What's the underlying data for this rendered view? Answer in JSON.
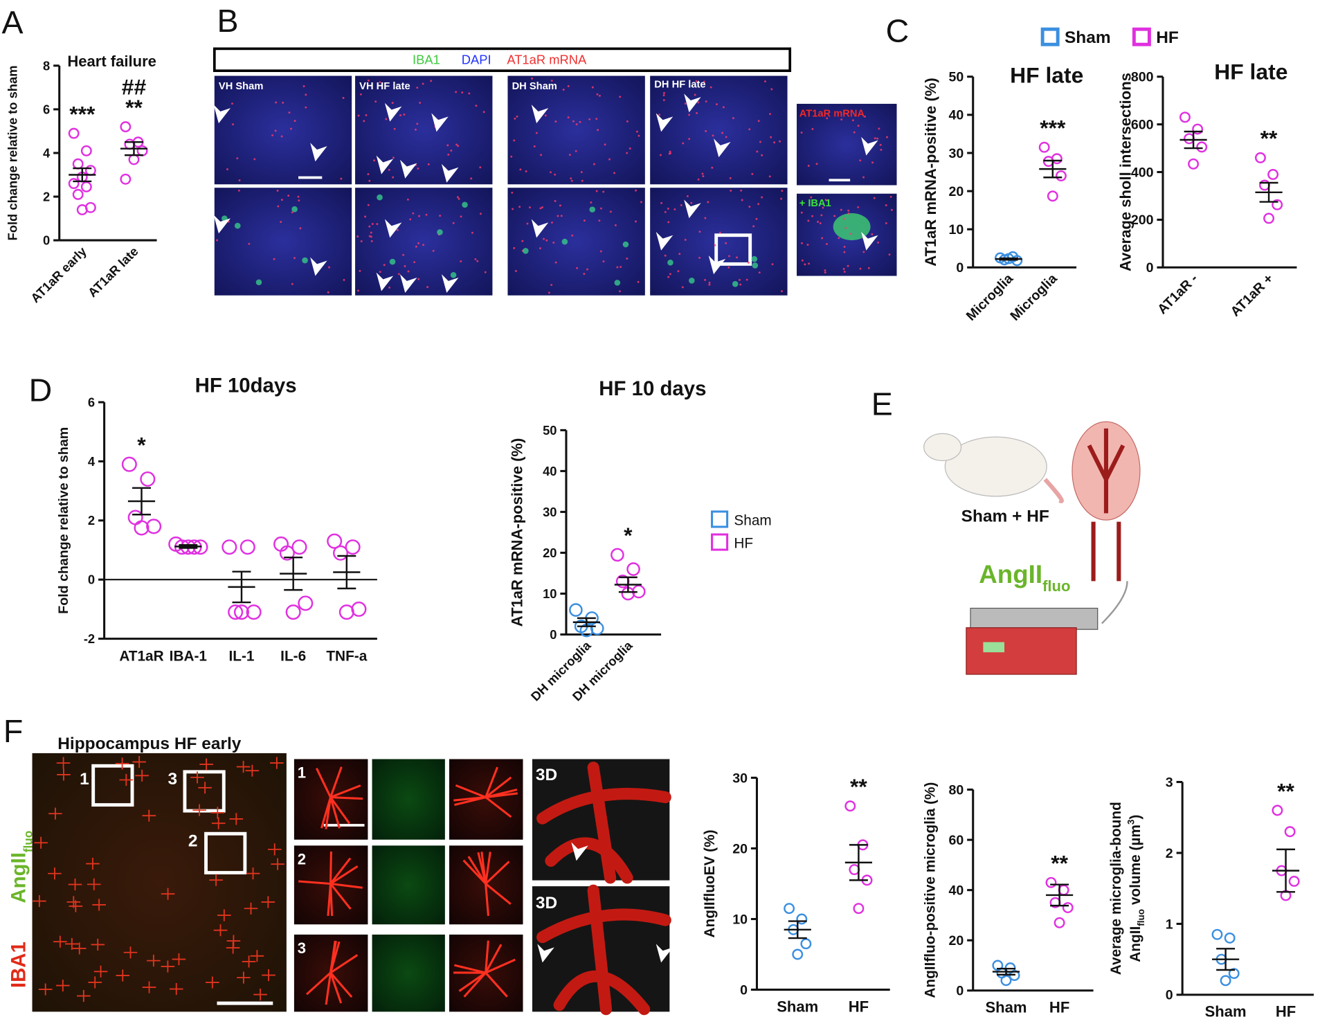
{
  "chart_data": [
    {
      "type": "dot",
      "title": "Heart failure",
      "ylabel": [
        "Fold change relative to sham"
      ],
      "categories": [
        "AT1aR early",
        "AT1aR late"
      ],
      "ylim": [
        0,
        8
      ],
      "yticks": [
        0,
        2,
        4,
        6,
        8
      ],
      "groups": [
        {
          "color": "#e030e0",
          "points": [
            4.9,
            4.1,
            3.5,
            3.2,
            2.9,
            2.6,
            2.45,
            2.1,
            1.5,
            1.4
          ],
          "mean": 3.0,
          "sem": 0.3
        },
        {
          "color": "#e030e0",
          "points": [
            5.2,
            4.5,
            4.4,
            4.1,
            3.7,
            2.8
          ],
          "mean": 4.2,
          "sem": 0.3
        }
      ],
      "annotations": [
        [
          "***"
        ],
        [
          "##",
          "**"
        ]
      ]
    },
    {
      "type": "dot",
      "title": "HF late",
      "ylabel": [
        "AT1aR mRNA-positive (%)"
      ],
      "categories": [
        "Microglia",
        "Microglia"
      ],
      "ylim": [
        0,
        50
      ],
      "yticks": [
        0,
        10,
        20,
        30,
        40,
        50
      ],
      "groups": [
        {
          "color": "#3b8fe0",
          "points": [
            2.5,
            2.8,
            2,
            1.8,
            2.3
          ],
          "mean": 2.2,
          "sem": 0.2
        },
        {
          "color": "#e030e0",
          "points": [
            31.5,
            28.5,
            27.8,
            24,
            18.7
          ],
          "mean": 25.8,
          "sem": 2.2
        }
      ],
      "annotations": [
        [],
        [
          "***"
        ]
      ],
      "legend": [
        {
          "name": "Sham",
          "color": "#3b8fe0"
        },
        {
          "name": "HF",
          "color": "#e030e0"
        }
      ]
    },
    {
      "type": "dot",
      "title": "HF late",
      "ylabel": [
        "Average sholl intersections"
      ],
      "categories": [
        "AT1aR -",
        "AT1aR +"
      ],
      "ylim": [
        0,
        800
      ],
      "yticks": [
        0,
        200,
        400,
        600,
        800
      ],
      "groups": [
        {
          "color": "#e030e0",
          "points": [
            630,
            580,
            540,
            505,
            434
          ],
          "mean": 535,
          "sem": 35
        },
        {
          "color": "#e030e0",
          "points": [
            460,
            390,
            345,
            263,
            206
          ],
          "mean": 315,
          "sem": 40
        }
      ],
      "annotations": [
        [],
        [
          "**"
        ]
      ]
    },
    {
      "type": "dot",
      "title": "HF 10days",
      "ylabel": [
        "Fold change relative to sham"
      ],
      "categories": [
        "AT1aR",
        "IBA-1",
        "IL-1",
        "IL-6",
        "TNF-a"
      ],
      "ylim": [
        -2,
        6
      ],
      "yticks": [
        -2,
        0,
        2,
        4,
        6
      ],
      "zero_line": true,
      "groups": [
        {
          "color": "#e030e0",
          "points": [
            3.9,
            3.4,
            2.1,
            1.8,
            1.75
          ],
          "mean": 2.65,
          "sem": 0.45
        },
        {
          "color": "#e030e0",
          "points": [
            1.2,
            1.1,
            1.1,
            1.1,
            1.1
          ],
          "mean": 1.12,
          "sem": 0.05
        },
        {
          "color": "#e030e0",
          "points": [
            1.1,
            1.1,
            -1.1,
            -1.1,
            -1.1
          ],
          "mean": -0.25,
          "sem": 0.52
        },
        {
          "color": "#e030e0",
          "points": [
            1.2,
            1.1,
            0.9,
            -0.8,
            -1.1
          ],
          "mean": 0.2,
          "sem": 0.55
        },
        {
          "color": "#e030e0",
          "points": [
            1.3,
            1.1,
            0.9,
            -1.0,
            -1.1
          ],
          "mean": 0.25,
          "sem": 0.55
        }
      ],
      "annotations": [
        [
          "*"
        ],
        [],
        [],
        [],
        []
      ]
    },
    {
      "type": "dot",
      "title": "HF 10 days",
      "ylabel": [
        "AT1aR mRNA-positive (%)"
      ],
      "categories": [
        "DH microglia",
        "DH microglia"
      ],
      "ylim": [
        0,
        50
      ],
      "yticks": [
        0,
        10,
        20,
        30,
        40,
        50
      ],
      "groups": [
        {
          "color": "#3b8fe0",
          "points": [
            6,
            4,
            2,
            1.5,
            1
          ],
          "mean": 3,
          "sem": 1
        },
        {
          "color": "#e030e0",
          "points": [
            19.5,
            16,
            13,
            10.5,
            10
          ],
          "mean": 12.2,
          "sem": 1.8
        }
      ],
      "annotations": [
        [],
        [
          "*"
        ]
      ],
      "legend": [
        {
          "name": "Sham",
          "color": "#3b8fe0"
        },
        {
          "name": "HF",
          "color": "#e030e0"
        }
      ]
    },
    {
      "type": "dot",
      "ylabel": [
        "AngIIfluoEV (%)"
      ],
      "categories": [
        "Sham",
        "HF"
      ],
      "ylim": [
        0,
        30
      ],
      "yticks": [
        0,
        10,
        20,
        30
      ],
      "groups": [
        {
          "color": "#3b8fe0",
          "points": [
            11.5,
            10,
            8.5,
            6.5,
            5
          ],
          "mean": 8.5,
          "sem": 1.2
        },
        {
          "color": "#e030e0",
          "points": [
            26,
            20.5,
            17,
            15.5,
            11.5
          ],
          "mean": 18,
          "sem": 2.5
        }
      ],
      "annotations": [
        [],
        [
          "**"
        ]
      ]
    },
    {
      "type": "dot",
      "ylabel": [
        "AngIIfluo-positive microglia (%)"
      ],
      "categories": [
        "Sham",
        "HF"
      ],
      "ylim": [
        0,
        80
      ],
      "yticks": [
        0,
        20,
        40,
        60,
        80
      ],
      "groups": [
        {
          "color": "#3b8fe0",
          "points": [
            10,
            9,
            7,
            6,
            4
          ],
          "mean": 7.5,
          "sem": 1.2
        },
        {
          "color": "#e030e0",
          "points": [
            43,
            40,
            35,
            33,
            27
          ],
          "mean": 38,
          "sem": 4.2
        }
      ],
      "annotations": [
        [],
        [
          "**"
        ]
      ]
    },
    {
      "type": "dot",
      "ylabel": [
        "Average microglia-bound",
        [
          {
            "text": "AngII"
          },
          {
            "text": "fluo",
            "script": "sub"
          },
          {
            "text": " volume (µm"
          },
          {
            "text": "3",
            "script": "sup"
          },
          {
            "text": ")"
          }
        ]
      ],
      "categories": [
        "Sham",
        "HF"
      ],
      "ylim": [
        0,
        3
      ],
      "yticks": [
        0,
        1,
        2,
        3
      ],
      "groups": [
        {
          "color": "#3b8fe0",
          "points": [
            0.85,
            0.8,
            0.5,
            0.3,
            0.2
          ],
          "mean": 0.5,
          "sem": 0.15
        },
        {
          "color": "#e030e0",
          "points": [
            2.6,
            2.3,
            1.75,
            1.6,
            1.4
          ],
          "mean": 1.75,
          "sem": 0.3
        }
      ],
      "annotations": [
        [],
        [
          "**"
        ]
      ]
    }
  ],
  "panels": {
    "letters": [
      "A",
      "B",
      "C",
      "D",
      "E",
      "F"
    ],
    "B": {
      "channels": [
        "IBA1",
        "DAPI",
        "AT1aR mRNA"
      ],
      "images": [
        "VH Sham",
        "VH HF late",
        "DH Sham",
        "DH HF late"
      ],
      "insets": [
        "AT1aR mRNA",
        "+ IBA1"
      ]
    },
    "E": {
      "label": "Sham + HF",
      "tracer": [
        "AngII",
        "fluo"
      ]
    },
    "F": {
      "title": "Hippocampus HF early",
      "stain_tracer": [
        "AngII",
        "fluo"
      ],
      "stain_cell": "IBA1",
      "boxes": [
        "1",
        "3",
        "2"
      ],
      "rows": [
        "1",
        "2",
        "3"
      ],
      "views": [
        "3D",
        "3D"
      ]
    }
  }
}
